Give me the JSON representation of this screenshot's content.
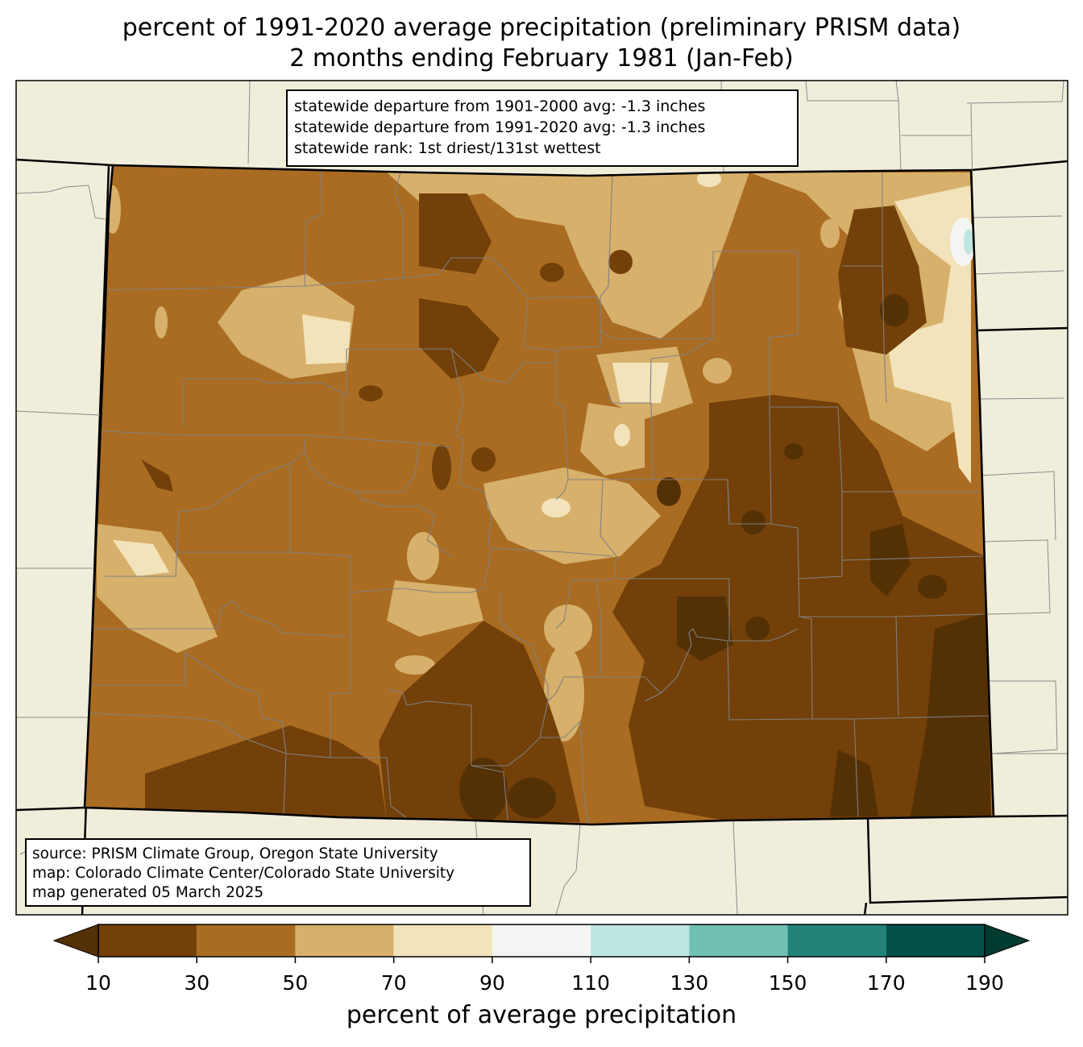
{
  "title": {
    "line1": "percent of 1991-2020 average precipitation (preliminary PRISM data)",
    "line2": "2 months ending February 1981 (Jan-Feb)"
  },
  "stats": {
    "line1": "statewide departure from 1901-2000 avg: -1.3 inches",
    "line2": "statewide departure from 1991-2020 avg: -1.3 inches",
    "line3": "statewide rank: 1st driest/131st wettest"
  },
  "source": {
    "line1": "source: PRISM Climate Group, Oregon State University",
    "line2": "map: Colorado Climate Center/Colorado State University",
    "line3": "map generated 05 March 2025"
  },
  "colorbar": {
    "label": "percent of average precipitation",
    "ticks": [
      "10",
      "30",
      "50",
      "70",
      "90",
      "110",
      "130",
      "150",
      "170",
      "190"
    ],
    "colors": [
      "#543005",
      "#724008",
      "#a96c22",
      "#d7b06b",
      "#f3e3bb",
      "#f4f5f3",
      "#bde6e1",
      "#70c0b3",
      "#218379",
      "#01514a",
      "#003b2f"
    ]
  },
  "legend_colors": {
    "background": "#f0eedb",
    "state_border": "#000000",
    "county_border": "#808080"
  }
}
